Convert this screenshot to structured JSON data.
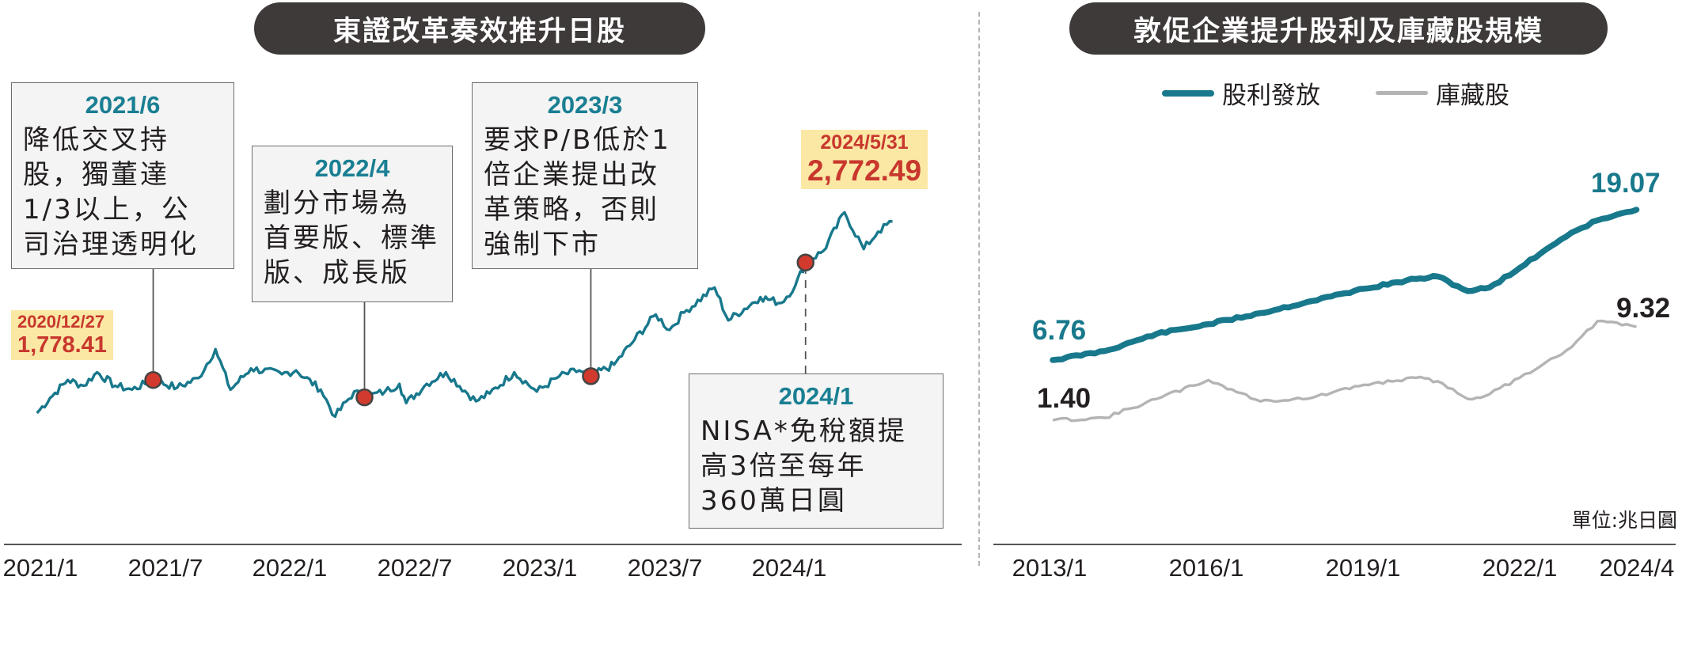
{
  "left_panel": {
    "title": "東證改革奏效推升日股",
    "start_label": {
      "date": "2020/12/27",
      "value": "1,778.41"
    },
    "end_label": {
      "date": "2024/5/31",
      "value": "2,772.49"
    },
    "events": [
      {
        "date": "2021/6",
        "text": [
          "降低交叉持",
          "股，獨董達",
          "1/3以上，公",
          "司治理透明化"
        ]
      },
      {
        "date": "2022/4",
        "text": [
          "劃分市場為",
          "首要版、標準",
          "版、成長版"
        ]
      },
      {
        "date": "2023/3",
        "text": [
          "要求P/B低於1",
          "倍企業提出改",
          "革策略，否則",
          "強制下市"
        ]
      },
      {
        "date": "2024/1",
        "text": [
          "NISA*免稅額提",
          "高3倍至每年",
          "360萬日圓"
        ]
      }
    ],
    "x_ticks": [
      "2021/1",
      "2021/7",
      "2022/1",
      "2022/7",
      "2023/1",
      "2023/7",
      "2024/1"
    ]
  },
  "right_panel": {
    "title": "敦促企業提升股利及庫藏股規模",
    "legend": [
      "股利發放",
      "庫藏股"
    ],
    "unit": "單位:兆日圓",
    "x_ticks": [
      "2013/1",
      "2016/1",
      "2019/1",
      "2022/1",
      "2024/4"
    ],
    "dividend_start": "6.76",
    "dividend_end": "19.07",
    "buyback_start": "1.40",
    "buyback_end": "9.32"
  },
  "colors": {
    "teal": "#18788c",
    "gray": "#b4b4b4",
    "red": "#d23a2e",
    "highlight": "#fbe8a4",
    "pill": "#3e3a39"
  },
  "chart_data": [
    {
      "type": "line",
      "xlabel": "",
      "ylabel": "",
      "series": [
        {
          "values": [
            [
              "2020-12-27",
              1778.41
            ],
            [
              "2021-01-15",
              1856
            ],
            [
              "2021-02-10",
              1950
            ],
            [
              "2021-03-05",
              1920
            ],
            [
              "2021-03-25",
              1990
            ],
            [
              "2021-04-20",
              1920
            ],
            [
              "2021-05-15",
              1900
            ],
            [
              "2021-06-15",
              1950
            ],
            [
              "2021-07-20",
              1910
            ],
            [
              "2021-08-20",
              1960
            ],
            [
              "2021-09-14",
              2110
            ],
            [
              "2021-10-06",
              1900
            ],
            [
              "2021-11-05",
              2010
            ],
            [
              "2021-12-20",
              1980
            ],
            [
              "2022-01-10",
              2000
            ],
            [
              "2022-02-15",
              1900
            ],
            [
              "2022-03-08",
              1760
            ],
            [
              "2022-04-05",
              1890
            ],
            [
              "2022-04-20",
              1860
            ],
            [
              "2022-05-20",
              1890
            ],
            [
              "2022-06-10",
              1930
            ],
            [
              "2022-06-20",
              1830
            ],
            [
              "2022-07-20",
              1930
            ],
            [
              "2022-08-17",
              1990
            ],
            [
              "2022-09-30",
              1840
            ],
            [
              "2022-10-20",
              1880
            ],
            [
              "2022-11-25",
              1990
            ],
            [
              "2022-12-28",
              1890
            ],
            [
              "2023-01-30",
              1970
            ],
            [
              "2023-02-28",
              2000
            ],
            [
              "2023-03-17",
              1970
            ],
            [
              "2023-04-20",
              2030
            ],
            [
              "2023-05-20",
              2160
            ],
            [
              "2023-06-20",
              2290
            ],
            [
              "2023-07-10",
              2210
            ],
            [
              "2023-07-31",
              2300
            ],
            [
              "2023-09-14",
              2430
            ],
            [
              "2023-10-04",
              2260
            ],
            [
              "2023-11-20",
              2380
            ],
            [
              "2023-12-20",
              2350
            ],
            [
              "2024-01-10",
              2440
            ],
            [
              "2024-01-25",
              2560
            ],
            [
              "2024-02-20",
              2620
            ],
            [
              "2024-03-22",
              2820
            ],
            [
              "2024-04-19",
              2630
            ],
            [
              "2024-05-10",
              2720
            ],
            [
              "2024-05-31",
              2772.49
            ]
          ]
        }
      ],
      "annotations": [
        "2021/6",
        "2022/4",
        "2023/3",
        "2024/1"
      ]
    },
    {
      "type": "line",
      "xlabel": "",
      "ylabel": "",
      "x": [
        "2013-01",
        "2014-01",
        "2015-01",
        "2016-01",
        "2017-01",
        "2018-01",
        "2019-01",
        "2020-01",
        "2020-06",
        "2021-01",
        "2021-06",
        "2022-01",
        "2022-07",
        "2023-01",
        "2023-07",
        "2024-04"
      ],
      "series": [
        {
          "name": "股利發放",
          "values": [
            6.76,
            7.5,
            8.9,
            9.7,
            10.6,
            11.6,
            12.6,
            13.4,
            13.6,
            12.4,
            12.7,
            14.3,
            15.8,
            17.2,
            18.2,
            19.07
          ]
        },
        {
          "name": "庫藏股",
          "values": [
            1.4,
            1.6,
            3.2,
            4.8,
            3.0,
            3.3,
            4.4,
            5.0,
            4.7,
            3.2,
            3.6,
            5.0,
            6.3,
            7.6,
            9.8,
            9.32
          ]
        }
      ]
    }
  ]
}
